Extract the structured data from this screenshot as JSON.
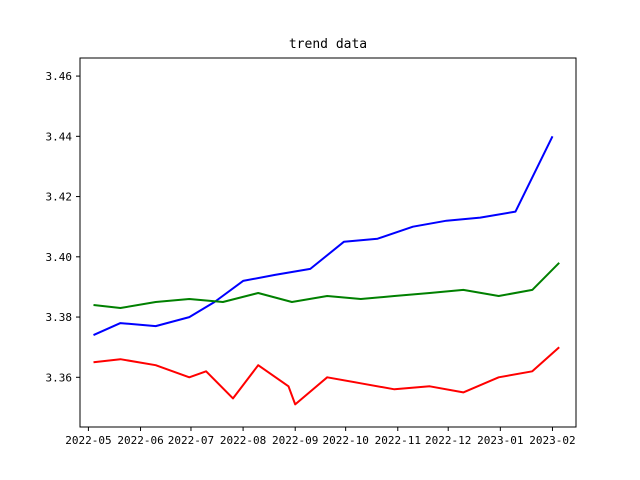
{
  "chart_data": {
    "type": "line",
    "title": "trend data",
    "xlabel": "",
    "ylabel": "",
    "x_ticks": [
      "2022-05",
      "2022-06",
      "2022-07",
      "2022-08",
      "2022-09",
      "2022-10",
      "2022-11",
      "2022-12",
      "2023-01",
      "2023-02"
    ],
    "y_ticks": [
      "3.36",
      "3.38",
      "3.40",
      "3.42",
      "3.44",
      "3.46"
    ],
    "xlim": [
      "2022-04-26",
      "2023-02-15"
    ],
    "ylim": [
      3.3435,
      3.466
    ],
    "grid": false,
    "legend": "none",
    "series": [
      {
        "color": "#ff0000",
        "values": [
          [
            "2022-05-04",
            3.365
          ],
          [
            "2022-05-20",
            3.366
          ],
          [
            "2022-06-10",
            3.364
          ],
          [
            "2022-06-30",
            3.36
          ],
          [
            "2022-07-10",
            3.362
          ],
          [
            "2022-07-26",
            3.353
          ],
          [
            "2022-08-10",
            3.364
          ],
          [
            "2022-08-28",
            3.357
          ],
          [
            "2022-09-01",
            3.351
          ],
          [
            "2022-09-20",
            3.36
          ],
          [
            "2022-10-10",
            3.358
          ],
          [
            "2022-10-30",
            3.356
          ],
          [
            "2022-11-20",
            3.357
          ],
          [
            "2022-12-10",
            3.355
          ],
          [
            "2022-12-31",
            3.36
          ],
          [
            "2023-01-20",
            3.362
          ],
          [
            "2023-02-05",
            3.37
          ]
        ]
      },
      {
        "color": "#0000ff",
        "values": [
          [
            "2022-05-04",
            3.374
          ],
          [
            "2022-05-20",
            3.378
          ],
          [
            "2022-06-10",
            3.377
          ],
          [
            "2022-06-30",
            3.38
          ],
          [
            "2022-07-15",
            3.385
          ],
          [
            "2022-08-01",
            3.392
          ],
          [
            "2022-08-20",
            3.394
          ],
          [
            "2022-09-10",
            3.396
          ],
          [
            "2022-09-30",
            3.405
          ],
          [
            "2022-10-20",
            3.406
          ],
          [
            "2022-11-10",
            3.41
          ],
          [
            "2022-11-30",
            3.412
          ],
          [
            "2022-12-20",
            3.413
          ],
          [
            "2023-01-10",
            3.415
          ],
          [
            "2023-02-01",
            3.44
          ]
        ]
      },
      {
        "color": "#008000",
        "values": [
          [
            "2022-05-04",
            3.384
          ],
          [
            "2022-05-20",
            3.383
          ],
          [
            "2022-06-10",
            3.385
          ],
          [
            "2022-06-30",
            3.386
          ],
          [
            "2022-07-20",
            3.385
          ],
          [
            "2022-08-10",
            3.388
          ],
          [
            "2022-08-30",
            3.385
          ],
          [
            "2022-09-20",
            3.387
          ],
          [
            "2022-10-10",
            3.386
          ],
          [
            "2022-10-30",
            3.387
          ],
          [
            "2022-11-20",
            3.388
          ],
          [
            "2022-12-10",
            3.389
          ],
          [
            "2022-12-31",
            3.387
          ],
          [
            "2023-01-20",
            3.389
          ],
          [
            "2023-02-05",
            3.398
          ]
        ]
      }
    ]
  }
}
